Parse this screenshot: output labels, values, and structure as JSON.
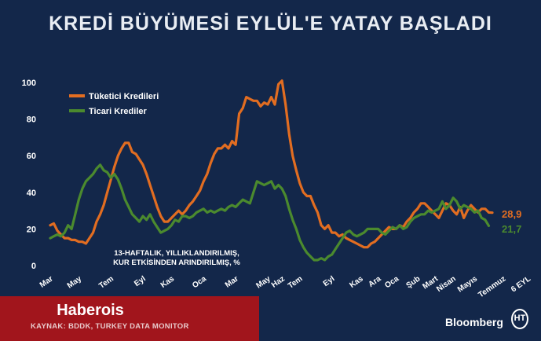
{
  "header": {
    "title": "KREDİ BÜYÜMESİ EYLÜL'E YATAY BAŞLADI"
  },
  "footer": {
    "watermark": "Haberois",
    "source": "KAYNAK: BDDK, TURKEY DATA MONITOR",
    "brand": "Bloomberg",
    "logo_mark": "HT"
  },
  "colors": {
    "background": "#13274a",
    "consumer": "#e26d21",
    "commercial": "#4b8a2e",
    "footer_band": "#a1151c"
  },
  "chart_data": {
    "type": "line",
    "title": "KREDİ BÜYÜMESİ EYLÜL'E YATAY BAŞLADI",
    "ylim": [
      0,
      100
    ],
    "yticks": [
      0,
      20,
      40,
      60,
      80,
      100
    ],
    "x_tick_labels": [
      "Mar",
      "May",
      "Tem",
      "Eyl",
      "Kas",
      "Oca",
      "Mar",
      "May",
      "Haz",
      "Tem",
      "Eyl",
      "Kas",
      "Ara",
      "Oca",
      "Şub",
      "Mart",
      "Nisan",
      "Mayıs",
      "Temmuz",
      "6 EYL"
    ],
    "x_tick_positions": [
      0,
      8,
      17,
      26,
      34,
      43,
      52,
      61,
      65,
      70,
      79,
      87,
      92,
      97,
      103,
      108,
      113,
      119,
      127,
      134
    ],
    "legend_position": "top-left",
    "annotation": [
      "13-HAFTALIK, YILLIKLANDIRILMIŞ,",
      "KUR ETKİSİNDEN ARINDIRILMIŞ, %"
    ],
    "series": [
      {
        "name": "Tüketici Kredileri",
        "color": "#e26d21",
        "end_label": "28,9",
        "values": [
          22,
          23,
          19,
          17,
          15,
          15,
          14,
          14,
          13,
          13,
          12,
          15,
          18,
          24,
          28,
          33,
          40,
          47,
          54,
          60,
          64,
          67,
          67,
          62,
          61,
          58,
          55,
          50,
          44,
          38,
          32,
          27,
          24,
          24,
          26,
          28,
          30,
          28,
          30,
          33,
          35,
          38,
          41,
          46,
          50,
          56,
          61,
          64,
          64,
          66,
          64,
          68,
          66,
          83,
          86,
          92,
          91,
          90,
          90,
          87,
          89,
          88,
          92,
          88,
          99,
          101,
          88,
          72,
          60,
          52,
          45,
          40,
          38,
          38,
          33,
          29,
          22,
          20,
          22,
          18,
          18,
          16,
          17,
          15,
          14,
          13,
          12,
          11,
          10,
          10,
          12,
          13,
          15,
          17,
          19,
          21,
          20,
          20,
          22,
          21,
          24,
          26,
          29,
          31,
          34,
          34,
          32,
          30,
          28,
          26,
          30,
          34,
          33,
          30,
          28,
          32,
          26,
          30,
          33,
          31,
          29,
          31,
          31,
          29,
          28.9
        ]
      },
      {
        "name": "Ticari Krediler",
        "color": "#4b8a2e",
        "end_label": "21,7",
        "values": [
          15,
          16,
          17,
          16,
          18,
          22,
          20,
          28,
          36,
          42,
          46,
          48,
          50,
          53,
          55,
          52,
          51,
          48,
          50,
          47,
          42,
          36,
          32,
          28,
          26,
          24,
          27,
          25,
          28,
          24,
          21,
          18,
          19,
          20,
          22,
          25,
          24,
          27,
          27,
          26,
          27,
          29,
          30,
          31,
          29,
          30,
          29,
          30,
          31,
          30,
          32,
          33,
          32,
          34,
          36,
          35,
          34,
          40,
          46,
          45,
          44,
          45,
          46,
          42,
          44,
          42,
          38,
          31,
          25,
          20,
          14,
          10,
          7,
          5,
          3,
          3,
          4,
          3,
          5,
          6,
          9,
          12,
          15,
          18,
          19,
          17,
          16,
          17,
          18,
          20,
          20,
          20,
          20,
          18,
          17,
          19,
          21,
          20,
          22,
          20,
          21,
          24,
          26,
          27,
          28,
          28,
          30,
          29,
          30,
          31,
          35,
          31,
          33,
          37,
          35,
          31,
          33,
          32,
          31,
          29,
          30,
          26,
          25,
          21.7
        ]
      }
    ]
  }
}
